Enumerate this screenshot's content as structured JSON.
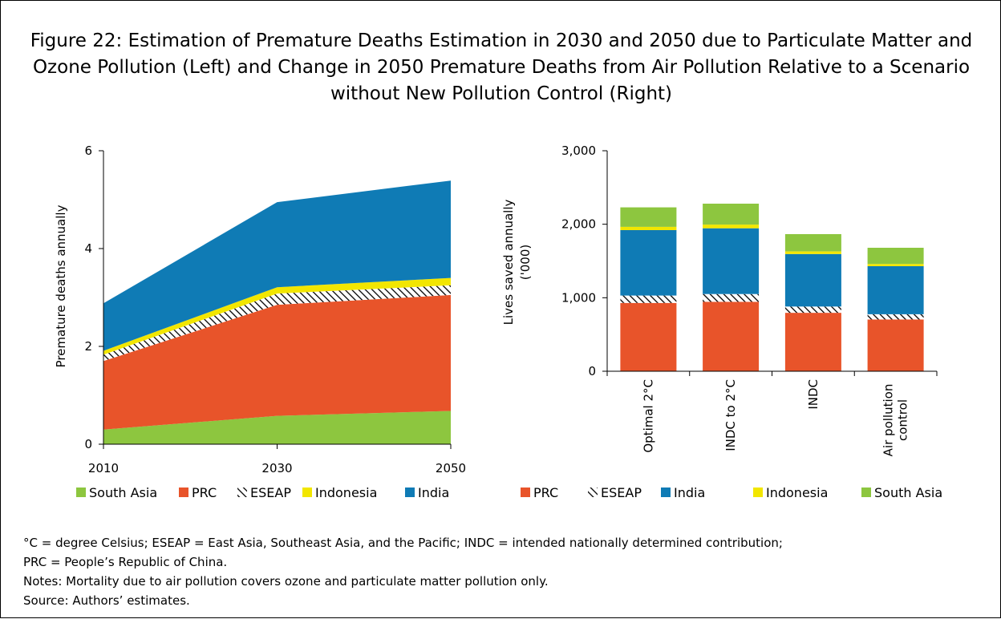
{
  "figure": {
    "title": "Figure 22: Estimation of Premature Deaths Estimation in 2030 and 2050 due to Particulate Matter and Ozone Pollution (Left) and Change in 2050 Premature Deaths from Air Pollution Relative to a Scenario without New Pollution Control (Right)"
  },
  "notes": {
    "abbreviations_1": "°C = degree Celsius; ESEAP = East Asia, Southeast Asia, and the Pacific; INDC = intended nationally determined contribution;",
    "abbreviations_2": "PRC = People’s Republic of China.",
    "notes": "Notes: Mortality due to air pollution covers ozone and particulate matter pollution only.",
    "source": "Source: Authors’ estimates."
  },
  "colors": {
    "South Asia": "#8dc63f",
    "PRC": "#e8542a",
    "ESEAP": "hatch",
    "Indonesia": "#f2e600",
    "India": "#0f7bb5"
  },
  "chart_data": [
    {
      "type": "area",
      "stacked": true,
      "x": [
        "2010",
        "2030",
        "2050"
      ],
      "ylabel": "Premature deaths annually",
      "xlabel": "",
      "ylim": [
        0,
        6
      ],
      "yticks": [
        0,
        2,
        4,
        6
      ],
      "grid": false,
      "legend_position": "bottom",
      "series": [
        {
          "name": "South Asia",
          "values": [
            0.3,
            0.58,
            0.68
          ]
        },
        {
          "name": "PRC",
          "values": [
            1.4,
            2.27,
            2.37
          ]
        },
        {
          "name": "ESEAP",
          "values": [
            0.13,
            0.23,
            0.2
          ]
        },
        {
          "name": "Indonesia",
          "values": [
            0.08,
            0.13,
            0.15
          ]
        },
        {
          "name": "India",
          "values": [
            0.97,
            1.74,
            1.99
          ]
        }
      ]
    },
    {
      "type": "bar",
      "stacked": true,
      "categories": [
        "Optimal 2°C",
        "INDC to 2°C",
        "INDC",
        "Air pollution control"
      ],
      "ylabel": "Lives saved annually ('000)",
      "xlabel": "",
      "ylim": [
        0,
        3000
      ],
      "yticks": [
        "0",
        "1,000",
        "2,000",
        "3,000"
      ],
      "grid": false,
      "legend_position": "bottom",
      "series": [
        {
          "name": "PRC",
          "values": [
            930,
            945,
            795,
            705
          ]
        },
        {
          "name": "ESEAP",
          "values": [
            100,
            105,
            85,
            70
          ]
        },
        {
          "name": "India",
          "values": [
            890,
            895,
            715,
            655
          ]
        },
        {
          "name": "Indonesia",
          "values": [
            45,
            50,
            35,
            30
          ]
        },
        {
          "name": "South Asia",
          "values": [
            265,
            285,
            235,
            220
          ]
        }
      ]
    }
  ]
}
